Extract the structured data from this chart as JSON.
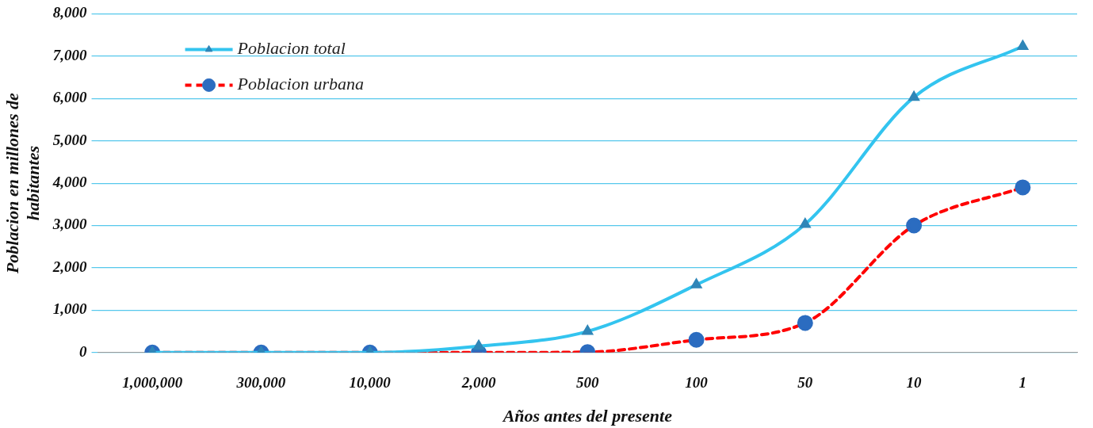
{
  "chart_data": {
    "type": "line",
    "xlabel": "Años antes del presente",
    "ylabel": "Poblacion en millones de habitantes",
    "categories": [
      "1,000,000",
      "300,000",
      "10,000",
      "2,000",
      "500",
      "100",
      "50",
      "10",
      "1"
    ],
    "ylim": [
      0,
      8000
    ],
    "yticks": [
      {
        "value": 0,
        "label": "0"
      },
      {
        "value": 1000,
        "label": "1,000"
      },
      {
        "value": 2000,
        "label": "2,000"
      },
      {
        "value": 3000,
        "label": "3,000"
      },
      {
        "value": 4000,
        "label": "4,000"
      },
      {
        "value": 5000,
        "label": "5,000"
      },
      {
        "value": 6000,
        "label": "6,000"
      },
      {
        "value": 7000,
        "label": "7,000"
      },
      {
        "value": 8000,
        "label": "8,000"
      }
    ],
    "grid": "y",
    "legend": "top left",
    "series": [
      {
        "name": "Poblacion total",
        "color": "#33c4ef",
        "colors": [
          "#2f86b8",
          "#2f86b8",
          "#2f86b8",
          "#2f86b8",
          "#2f86b8",
          "#2f86b8",
          "#2f86b8",
          "#2f86b8",
          "#2f86b8"
        ],
        "marker": "triangle",
        "line_style": "solid",
        "values": [
          0,
          0,
          0,
          150,
          500,
          1600,
          3030,
          6030,
          7230
        ]
      },
      {
        "name": "Poblacion urbana",
        "color": "#ff0000",
        "colors": [
          "#2b6cc0",
          "#2b6cc0",
          "#2b6cc0",
          "#2b6cc0",
          "#2b6cc0",
          "#2b6cc0",
          "#2b6cc0",
          "#2b6cc0",
          "#2b6cc0"
        ],
        "marker": "circle",
        "line_style": "dashed",
        "values": [
          0,
          0,
          0,
          0,
          10,
          300,
          700,
          3000,
          3900
        ]
      }
    ]
  }
}
